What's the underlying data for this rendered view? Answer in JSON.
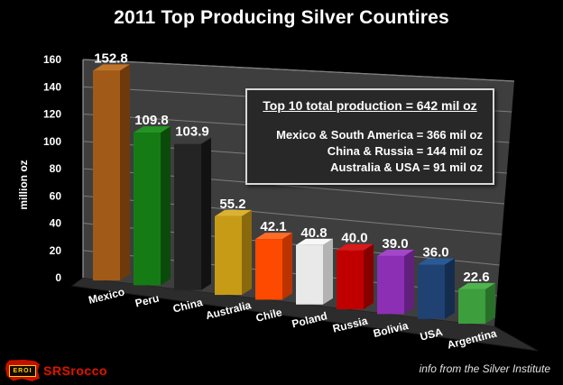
{
  "page": {
    "title": "2011 Top Producing Silver Countires",
    "background": "#000000"
  },
  "chart_data": {
    "type": "bar",
    "style": "3d-column",
    "title": "2011 Top Producing Silver Countires",
    "categories": [
      "Mexico",
      "Peru",
      "China",
      "Australia",
      "Chile",
      "Poland",
      "Russia",
      "Bolivia",
      "USA",
      "Argentina"
    ],
    "values": [
      152.8,
      109.8,
      103.9,
      55.2,
      42.1,
      40.8,
      40.0,
      39.0,
      36.0,
      22.6
    ],
    "value_labels": [
      "152.8",
      "109.8",
      "103.9",
      "55.2",
      "42.1",
      "40.8",
      "40.0",
      "39.0",
      "36.0",
      "22.6"
    ],
    "ylabel": "million oz",
    "xlabel": "",
    "yticks": [
      0,
      20,
      40,
      60,
      80,
      100,
      120,
      140,
      160
    ],
    "ylim": [
      0,
      160
    ],
    "grid": true,
    "legend": "none",
    "wall_color": "#3e3e3e",
    "floor_color": "#2c2c2c",
    "gridline_color": "#7d7d7d",
    "edge_highlight_color": "#9a9a9a",
    "text_color": "#ffffff",
    "bar_colors": [
      {
        "front": "#a15a17",
        "side": "#6e3a0c",
        "top": "#c0742a"
      },
      {
        "front": "#157c15",
        "side": "#0b4a0b",
        "top": "#239423"
      },
      {
        "front": "#242424",
        "side": "#121212",
        "top": "#3d3d3d"
      },
      {
        "front": "#c79b16",
        "side": "#8a690c",
        "top": "#dab231"
      },
      {
        "front": "#fe4a00",
        "side": "#bb3300",
        "top": "#ff6c26"
      },
      {
        "front": "#e9e9e9",
        "side": "#b3b3b3",
        "top": "#f8f8f8"
      },
      {
        "front": "#c00000",
        "side": "#860000",
        "top": "#d81a1a"
      },
      {
        "front": "#8c2fb4",
        "side": "#61207e",
        "top": "#a446cc"
      },
      {
        "front": "#1f4273",
        "side": "#142c4e",
        "top": "#2a5a96"
      },
      {
        "front": "#3c9e3c",
        "side": "#287028",
        "top": "#4fb44f"
      }
    ]
  },
  "annotation_box": {
    "heading": "Top 10 total production = 642 mil oz",
    "lines": [
      "Mexico & South America = 366 mil oz",
      "China & Russia = 144 mil oz",
      "Australia & USA = 91 mil oz"
    ]
  },
  "footer": {
    "logo_text": "EROI",
    "brand": "SRSrocco",
    "credit": "info from the Silver Institute"
  }
}
